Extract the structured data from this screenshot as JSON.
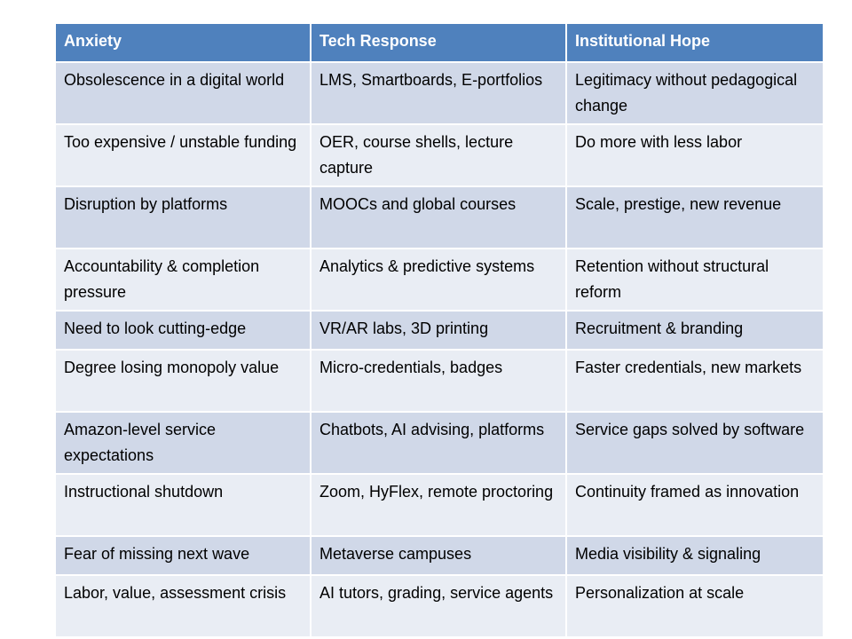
{
  "table": {
    "header": [
      "Anxiety",
      "Tech Response",
      "Institutional Hope"
    ],
    "rows": [
      [
        "Obsolescence in a digital world",
        "LMS, Smartboards, E-portfolios",
        "Legitimacy without pedagogical change"
      ],
      [
        "Too expensive / unstable funding",
        "OER, course shells, lecture capture",
        "Do more with less labor"
      ],
      [
        "Disruption by platforms",
        "MOOCs and global courses",
        "Scale, prestige, new revenue"
      ],
      [
        "Accountability & completion pressure",
        "Analytics & predictive systems",
        "Retention without structural reform"
      ],
      [
        "Need to look cutting-edge",
        "VR/AR labs, 3D printing",
        "Recruitment & branding"
      ],
      [
        "Degree losing monopoly value",
        "Micro-credentials, badges",
        "Faster credentials, new markets"
      ],
      [
        "Amazon-level service expectations",
        "Chatbots, AI advising, platforms",
        "Service gaps solved by software"
      ],
      [
        "Instructional shutdown",
        "Zoom, HyFlex, remote proctoring",
        "Continuity framed as innovation"
      ],
      [
        "Fear of missing next wave",
        "Metaverse campuses",
        "Media visibility & signaling"
      ],
      [
        "Labor, value, assessment crisis",
        "AI tutors, grading, service agents",
        "Personalization at scale"
      ]
    ]
  }
}
